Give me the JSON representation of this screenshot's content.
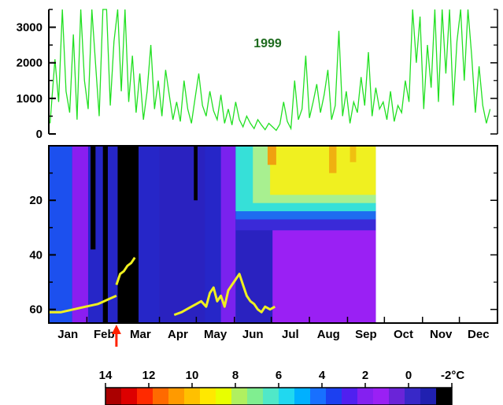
{
  "chart_data": [
    {
      "type": "line",
      "panel": "top",
      "annotation": "1999",
      "xlabel": "",
      "ylabel": "",
      "ylim": [
        0,
        3500
      ],
      "yticks": [
        0,
        1000,
        2000,
        3000
      ],
      "ytick_labels": [
        "0",
        "1000",
        "2000",
        "3000"
      ],
      "grid": false,
      "series": [
        {
          "color": "#22e022",
          "day": [
            1,
            5,
            8,
            11,
            14,
            17,
            20,
            23,
            26,
            29,
            32,
            35,
            38,
            41,
            44,
            47,
            50,
            53,
            56,
            59,
            62,
            65,
            68,
            71,
            74,
            77,
            80,
            83,
            86,
            89,
            92,
            95,
            98,
            101,
            104,
            107,
            110,
            113,
            116,
            119,
            122,
            125,
            128,
            131,
            134,
            137,
            140,
            143,
            146,
            149,
            152,
            155,
            158,
            161,
            164,
            167,
            170,
            173,
            176,
            179,
            182,
            185,
            188,
            191,
            194,
            197,
            200,
            203,
            206,
            209,
            212,
            215,
            218,
            221,
            224,
            227,
            230,
            233,
            236,
            239,
            242,
            245,
            248,
            251,
            254,
            257,
            260,
            263,
            266,
            269,
            272,
            275,
            278,
            281,
            284,
            287,
            290,
            293,
            296,
            299,
            302,
            305,
            308,
            311,
            314,
            317,
            320,
            323,
            326,
            329,
            332,
            335,
            338,
            341,
            344,
            347,
            350,
            353,
            356,
            359,
            362,
            365
          ],
          "values": [
            300,
            2100,
            900,
            3500,
            1200,
            600,
            2800,
            400,
            3500,
            1500,
            700,
            3500,
            2000,
            500,
            3500,
            3500,
            800,
            2600,
            3500,
            1200,
            3500,
            900,
            2200,
            600,
            1700,
            400,
            1200,
            2500,
            700,
            1500,
            500,
            1800,
            1100,
            400,
            900,
            350,
            1500,
            700,
            300,
            1000,
            1700,
            800,
            500,
            1200,
            650,
            400,
            1100,
            300,
            700,
            250,
            900,
            400,
            200,
            500,
            300,
            150,
            400,
            250,
            120,
            300,
            200,
            100,
            280,
            900,
            350,
            150,
            1500,
            400,
            700,
            2200,
            450,
            900,
            1400,
            600,
            1100,
            1800,
            400,
            800,
            2900,
            500,
            1200,
            300,
            900,
            600,
            1600,
            800,
            2300,
            500,
            1300,
            700,
            900,
            400,
            1200,
            350,
            800,
            600,
            1500,
            900,
            3500,
            2000,
            3300,
            700,
            2500,
            1300,
            3500,
            900,
            3500,
            1700,
            3500,
            800,
            2600,
            3500,
            1500,
            3500,
            2200,
            600,
            1900,
            800,
            300,
            700
          ]
        }
      ]
    },
    {
      "type": "heatmap",
      "panel": "bottom",
      "xlabel": "",
      "ylabel": "",
      "x_tick_labels": [
        "Jan",
        "Feb",
        "Mar",
        "Apr",
        "May",
        "Jun",
        "Jul",
        "Aug",
        "Sep",
        "Oct",
        "Nov",
        "Dec"
      ],
      "yticks": [
        20,
        40,
        60
      ],
      "ylim": [
        65,
        0
      ],
      "y_inverted": true,
      "marker": {
        "day": 55,
        "color": "#ff2200",
        "symbol": "up-arrow"
      },
      "data_end_day": 266,
      "background_color": "#2626c8",
      "regions": [
        {
          "d0": 0,
          "d1": 19,
          "z0": 0,
          "z1": 65,
          "color": "#1c50ee"
        },
        {
          "d0": 19,
          "d1": 32,
          "z0": 0,
          "z1": 65,
          "color": "#8a1ef0"
        },
        {
          "d0": 34,
          "d1": 38,
          "z0": 0,
          "z1": 38,
          "color": "#000000"
        },
        {
          "d0": 44,
          "d1": 48,
          "z0": 0,
          "z1": 65,
          "color": "#000000"
        },
        {
          "d0": 56,
          "d1": 73,
          "z0": 0,
          "z1": 65,
          "color": "#000000"
        },
        {
          "d0": 90,
          "d1": 127,
          "z0": 0,
          "z1": 65,
          "color": "#2a22c0"
        },
        {
          "d0": 118,
          "d1": 121,
          "z0": 0,
          "z1": 20,
          "color": "#000000"
        },
        {
          "d0": 140,
          "d1": 152,
          "z0": 0,
          "z1": 65,
          "color": "#7a22ee"
        },
        {
          "d0": 152,
          "d1": 182,
          "z0": 0,
          "z1": 65,
          "color": "#2a22c0"
        },
        {
          "d0": 182,
          "d1": 266,
          "z0": 0,
          "z1": 65,
          "color": "#9a20f4"
        },
        {
          "d0": 152,
          "d1": 266,
          "z0": 0,
          "z1": 31,
          "color": "#3a2ad8"
        },
        {
          "d0": 152,
          "d1": 266,
          "z0": 0,
          "z1": 27,
          "color": "#1e6cf0"
        },
        {
          "d0": 152,
          "d1": 266,
          "z0": 0,
          "z1": 24,
          "color": "#36e0d8"
        },
        {
          "d0": 166,
          "d1": 266,
          "z0": 0,
          "z1": 21,
          "color": "#a8f090"
        },
        {
          "d0": 180,
          "d1": 266,
          "z0": 0,
          "z1": 18,
          "color": "#f0f020"
        },
        {
          "d0": 178,
          "d1": 185,
          "z0": 0,
          "z1": 7,
          "color": "#f0a010"
        },
        {
          "d0": 228,
          "d1": 234,
          "z0": 0,
          "z1": 10,
          "color": "#f0b010"
        },
        {
          "d0": 245,
          "d1": 250,
          "z0": 0,
          "z1": 6,
          "color": "#f0c010"
        }
      ],
      "mixed_layer_trace": {
        "color": "#f0f020",
        "segments": [
          {
            "day": [
              0,
              10,
              20,
              30,
              40,
              50,
              55
            ],
            "depth": [
              61,
              61,
              60,
              59,
              58,
              56,
              55
            ]
          },
          {
            "day": [
              55,
              58,
              61,
              64,
              67,
              70
            ],
            "depth": [
              51,
              47,
              46,
              44,
              43,
              41
            ]
          },
          {
            "day": [
              102,
              108,
              112,
              116,
              120,
              124,
              128,
              131,
              134,
              137,
              140,
              143,
              146,
              149,
              152,
              155,
              158,
              161,
              164,
              167,
              170,
              173,
              176,
              180,
              184
            ],
            "depth": [
              62,
              61,
              60,
              59,
              58,
              57,
              59,
              54,
              52,
              57,
              55,
              59,
              53,
              51,
              49,
              47,
              51,
              55,
              57,
              58,
              60,
              61,
              59,
              60,
              59
            ]
          }
        ]
      }
    }
  ],
  "colorbar": {
    "tick_labels": [
      "14",
      "12",
      "10",
      "8",
      "6",
      "4",
      "2",
      "0",
      "-2°C"
    ],
    "colors": [
      "#aa0000",
      "#dd0000",
      "#ff2a00",
      "#ff6a00",
      "#ff9a00",
      "#ffc000",
      "#ffe800",
      "#e8ff00",
      "#b0f060",
      "#80ee90",
      "#50e8c8",
      "#20d8f0",
      "#00b0ff",
      "#1870ff",
      "#1c40f0",
      "#5020f0",
      "#8420f0",
      "#9a20f4",
      "#6a24d8",
      "#3828c8",
      "#2020b0",
      "#000000"
    ]
  }
}
